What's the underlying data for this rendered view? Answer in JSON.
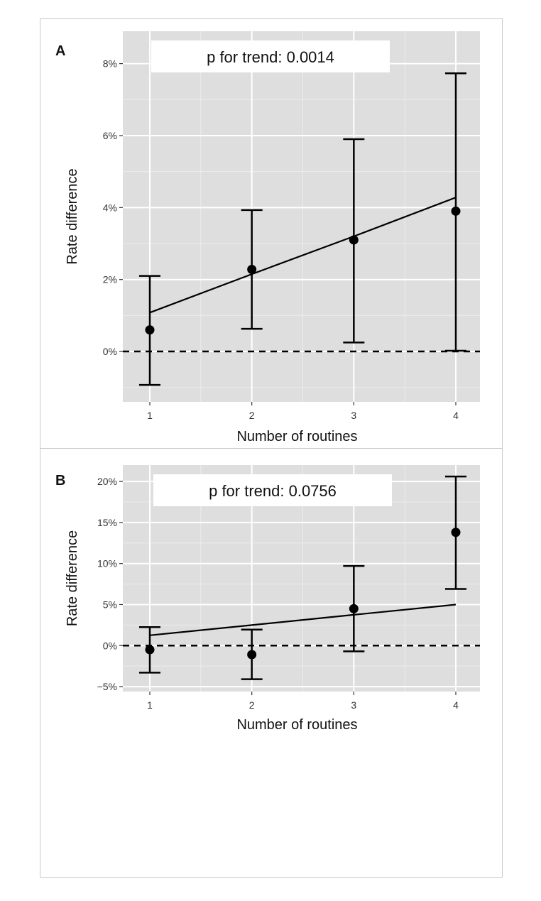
{
  "chart_data": [
    {
      "type": "errorbar-line",
      "panel_label": "A",
      "annotation": "p for trend: 0.0014",
      "xlabel": "Number of routines",
      "ylabel": "Rate difference",
      "categories": [
        "1",
        "2",
        "3",
        "4"
      ],
      "x": [
        1,
        2,
        3,
        4
      ],
      "y_ticks": [
        0,
        2,
        4,
        6,
        8
      ],
      "y_tick_labels": [
        "0%",
        "2%",
        "4%",
        "6%",
        "8%"
      ],
      "ylim": [
        -1.4,
        8.9
      ],
      "points": [
        0.6,
        2.28,
        3.1,
        3.9
      ],
      "lower": [
        -0.93,
        0.63,
        0.25,
        0.02
      ],
      "upper": [
        2.1,
        3.93,
        5.9,
        7.73
      ],
      "trend": [
        1.08,
        2.15,
        3.2,
        4.28
      ],
      "reference_line": 0
    },
    {
      "type": "errorbar-line",
      "panel_label": "B",
      "annotation": "p for trend: 0.0756",
      "xlabel": "Number of routines",
      "ylabel": "Rate difference",
      "categories": [
        "1",
        "2",
        "3",
        "4"
      ],
      "x": [
        1,
        2,
        3,
        4
      ],
      "y_ticks": [
        -5,
        0,
        5,
        10,
        15,
        20
      ],
      "y_tick_labels": [
        "−5%",
        "0%",
        "5%",
        "10%",
        "15%",
        "20%"
      ],
      "ylim": [
        -5.6,
        22.0
      ],
      "points": [
        -0.5,
        -1.1,
        4.5,
        13.8
      ],
      "lower": [
        -3.3,
        -4.1,
        -0.7,
        6.9
      ],
      "upper": [
        2.25,
        1.95,
        9.7,
        20.6
      ],
      "trend": [
        1.25,
        2.5,
        3.75,
        5.0
      ],
      "reference_line": 0
    }
  ]
}
